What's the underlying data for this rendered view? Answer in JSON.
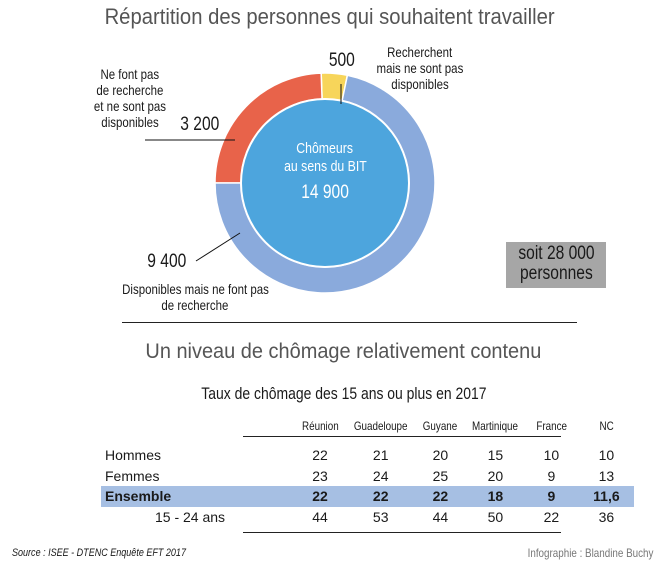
{
  "title": "Répartition des personnes qui souhaitent travailler",
  "chart_data": [
    {
      "type": "pie",
      "title": "Répartition des personnes qui souhaitent travailler",
      "center": {
        "label_line1": "Chômeurs",
        "label_line2": "au sens du BIT",
        "value_label": "14 900",
        "value": 14900
      },
      "slices": [
        {
          "name": "Recherchent mais ne sont pas disponibles",
          "value": 500,
          "value_label": "500",
          "color": "#f7d55a"
        },
        {
          "name": "Disponibles mais ne font pas de recherche",
          "value": 9400,
          "value_label": "9 400",
          "color": "#8aaadc"
        },
        {
          "name": "Ne font pas de recherche et ne sont pas disponibles",
          "value": 3200,
          "value_label": "3 200",
          "color": "#e8634a"
        }
      ],
      "center_color": "#4da5dd",
      "total_line1": "soit 28 000",
      "total_line2": "personnes"
    },
    {
      "type": "table",
      "title": "Taux de chômage des 15 ans ou plus en 2017",
      "columns": [
        "Réunion",
        "Guadeloupe",
        "Guyane",
        "Martinique",
        "France",
        "NC"
      ],
      "rows": [
        {
          "label": "Hommes",
          "values": [
            "22",
            "21",
            "20",
            "15",
            "10",
            "10"
          ]
        },
        {
          "label": "Femmes",
          "values": [
            "23",
            "24",
            "25",
            "20",
            "9",
            "13"
          ]
        },
        {
          "label": "Ensemble",
          "values": [
            "22",
            "22",
            "22",
            "18",
            "9",
            "11,6"
          ],
          "highlight": true
        },
        {
          "label": "15 - 24 ans",
          "values": [
            "44",
            "53",
            "44",
            "50",
            "22",
            "36"
          ]
        }
      ]
    }
  ],
  "labels": {
    "recherchent": [
      "Recherchent",
      "mais ne sont pas",
      "disponibles"
    ],
    "ne_font_pas": [
      "Ne font pas",
      "de recherche",
      "et ne sont pas",
      "disponibles"
    ],
    "disponibles": [
      "Disponibles mais ne font pas",
      "de recherche"
    ]
  },
  "subtitle": "Un niveau de chômage relativement contenu",
  "source": "Source : ISEE - DTENC Enquête EFT 2017",
  "credit": "Infographie : Blandine Buchy"
}
